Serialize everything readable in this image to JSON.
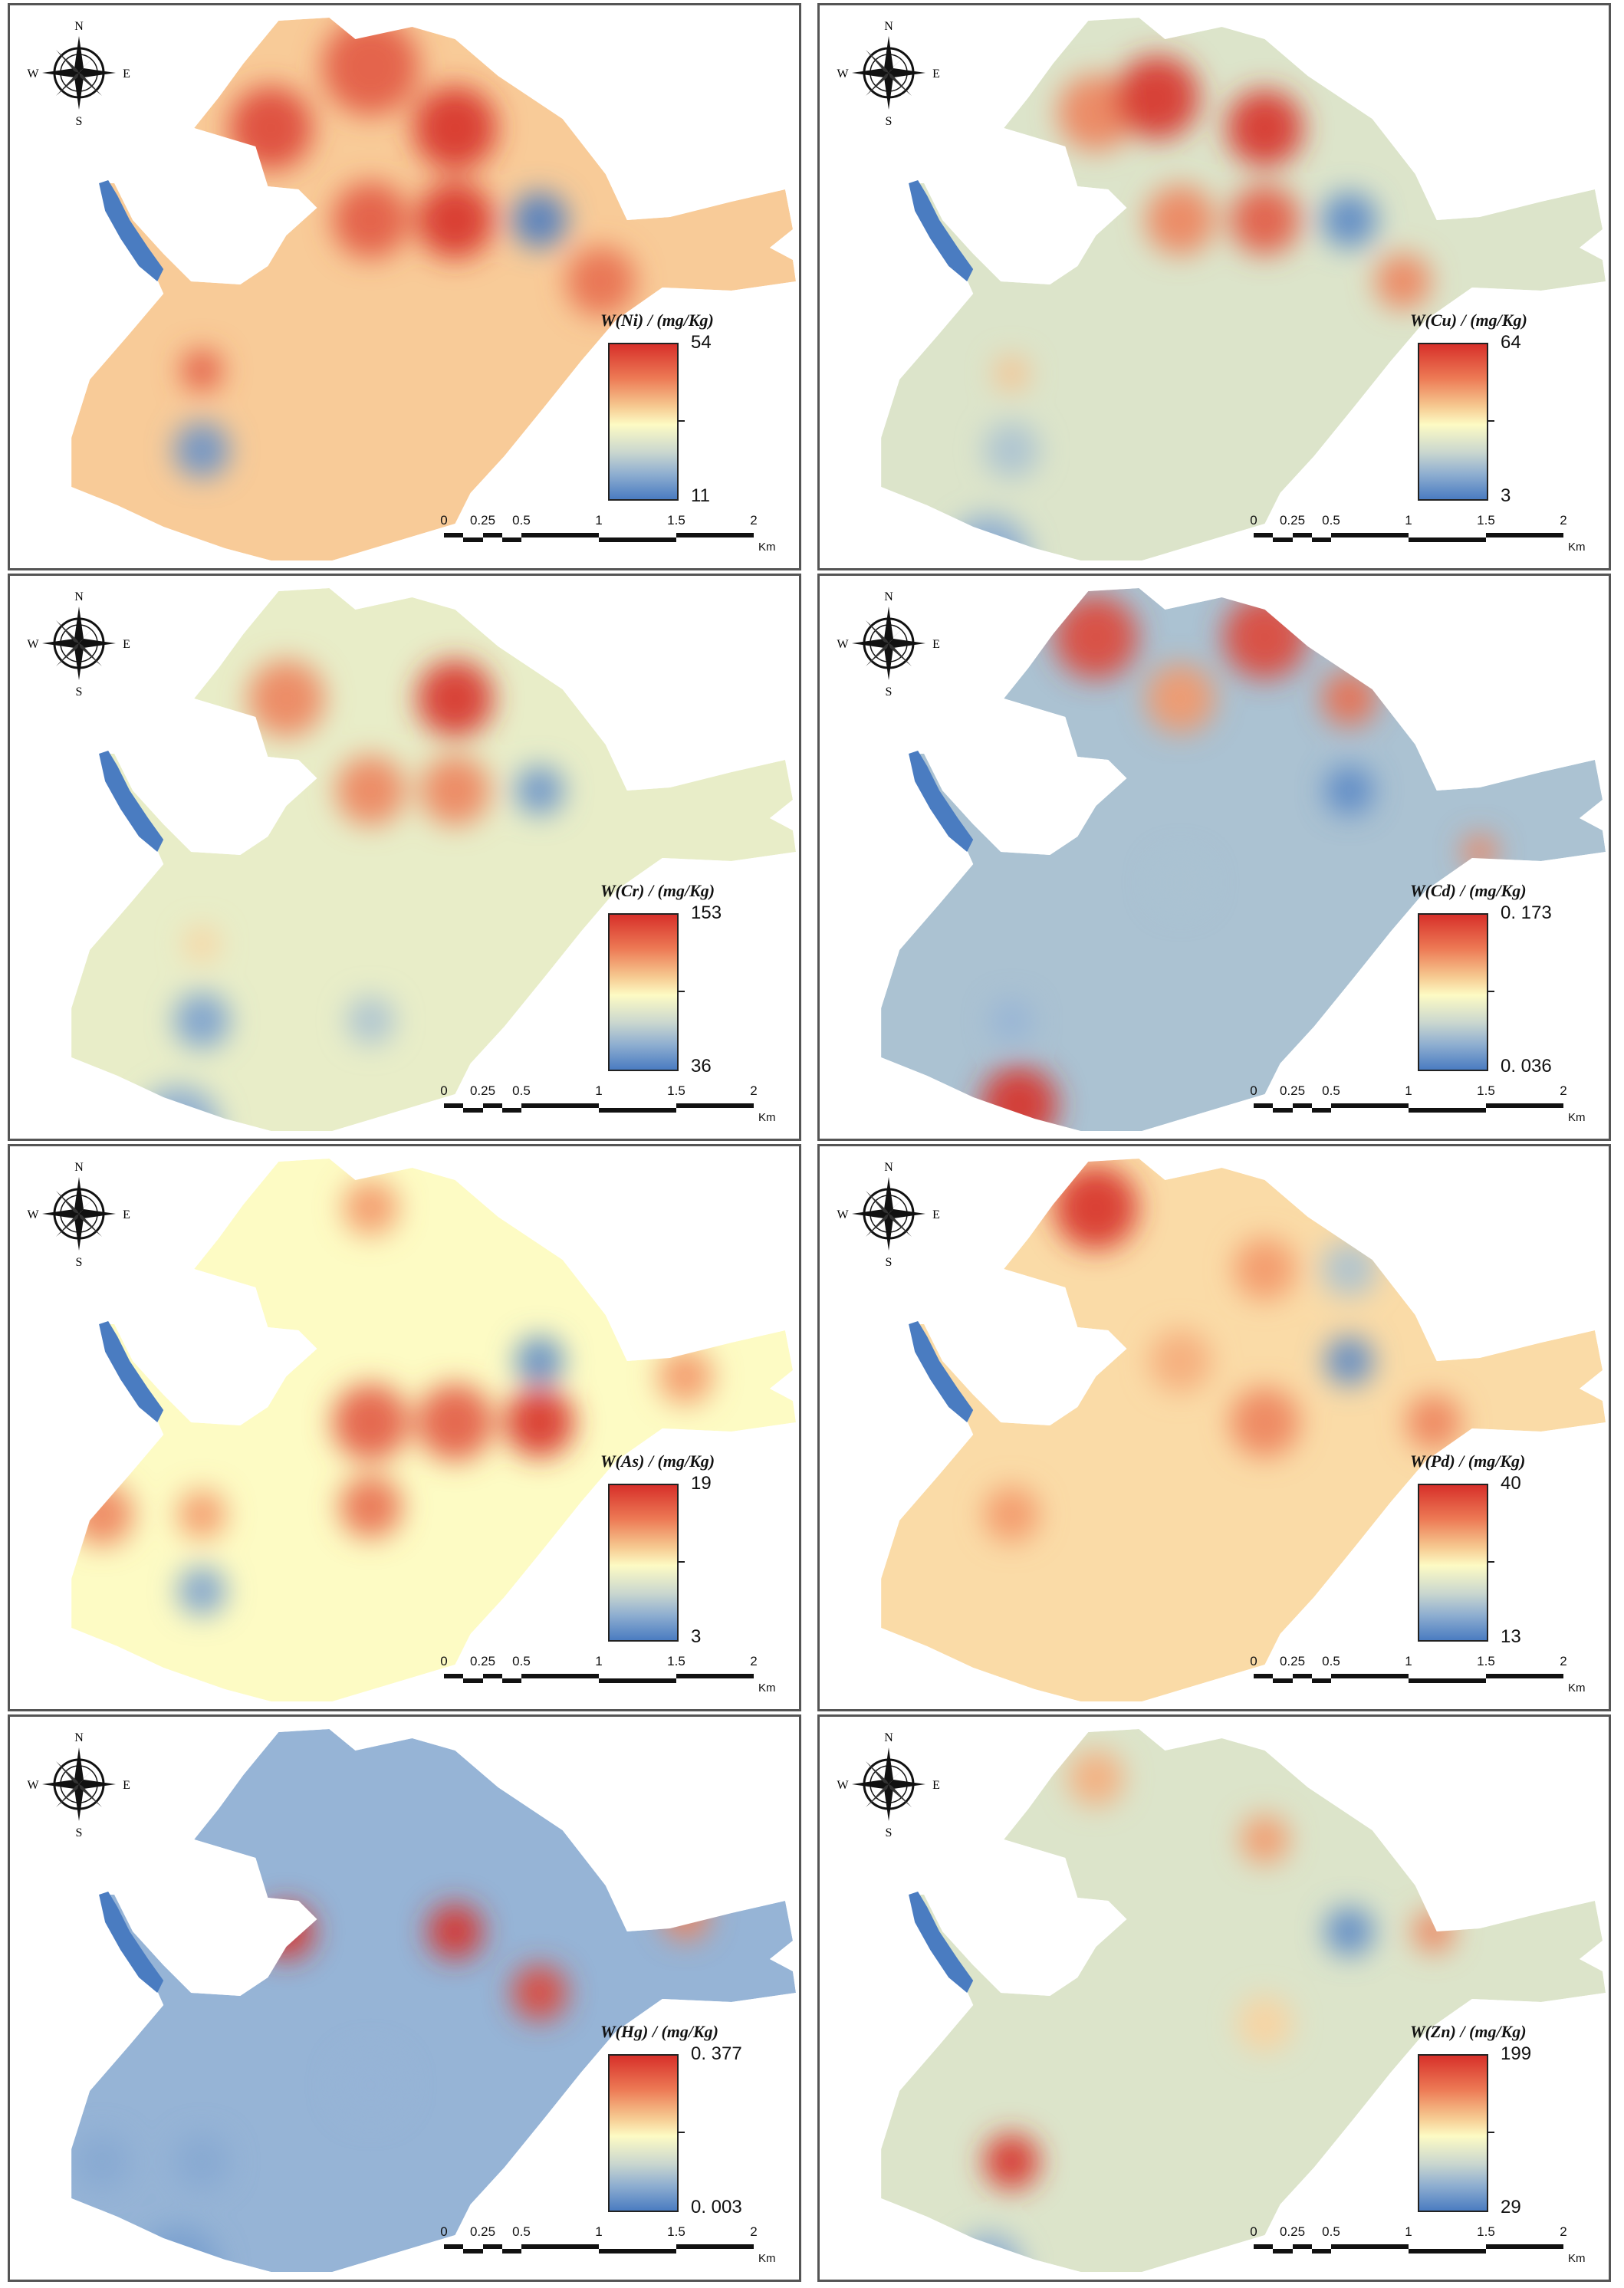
{
  "compass": {
    "n": "N",
    "s": "S",
    "e": "E",
    "w": "W"
  },
  "scale": {
    "labels": [
      "0",
      "0.25",
      "0.5",
      "1",
      "1.5",
      "2"
    ],
    "unit": "Km"
  },
  "colors": {
    "high": "#d7302a",
    "mid": "#fdfbc4",
    "low": "#4a7cc1"
  },
  "panels": [
    {
      "title": "W(Ni) / (mg/Kg)",
      "max": "54",
      "min": "11",
      "base": 0.62
    },
    {
      "title": "W(Cu) / (mg/Kg)",
      "max": "64",
      "min": "3",
      "base": 0.42
    },
    {
      "title": "W(Cr) / (mg/Kg)",
      "max": "153",
      "min": "36",
      "base": 0.45
    },
    {
      "title": "W(Cd) / (mg/Kg)",
      "max": "0. 173",
      "min": "0. 036",
      "base": 0.3
    },
    {
      "title": "W(As) / (mg/Kg)",
      "max": "19",
      "min": "3",
      "base": 0.5
    },
    {
      "title": "W(Pd) / (mg/Kg)",
      "max": "40",
      "min": "13",
      "base": 0.58
    },
    {
      "title": "W(Hg) / (mg/Kg)",
      "max": "0. 377",
      "min": "0. 003",
      "base": 0.25
    },
    {
      "title": "W(Zn) / (mg/Kg)",
      "max": "199",
      "min": "29",
      "base": 0.42
    }
  ]
}
